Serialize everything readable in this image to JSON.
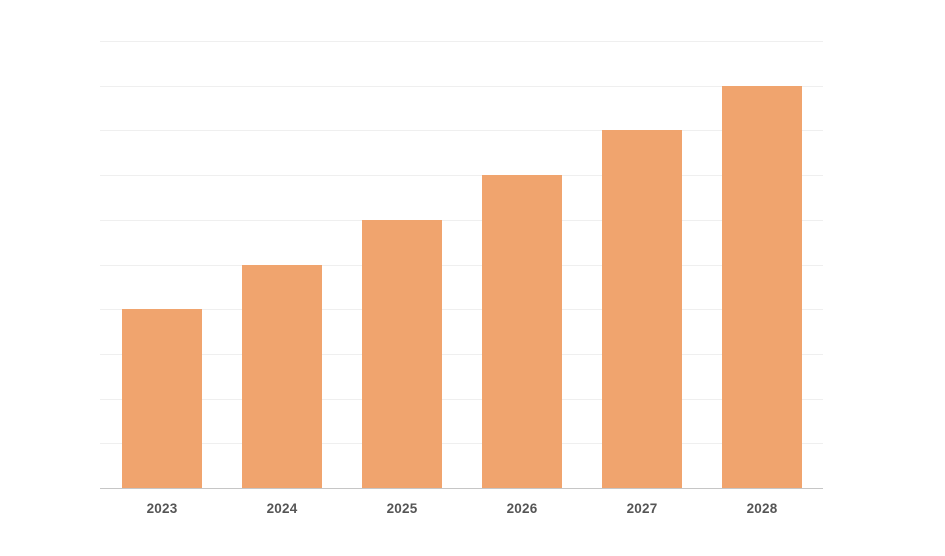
{
  "chart_data": {
    "type": "bar",
    "title": "",
    "xlabel": "",
    "ylabel": "",
    "categories": [
      "2023",
      "2024",
      "2025",
      "2026",
      "2027",
      "2028"
    ],
    "values": [
      4,
      5,
      6,
      7,
      8,
      9
    ],
    "ylim": [
      0,
      10
    ],
    "gridline_step": 1,
    "y_tick_labels_visible": false,
    "grid": "horizontal",
    "legend_position": "none",
    "bar_color": "#F0A46E",
    "gridline_color": "#EFEFEF",
    "axis_line_color": "#C6C6C6",
    "label_color": "#555555",
    "background_color": "#FFFFFF"
  }
}
